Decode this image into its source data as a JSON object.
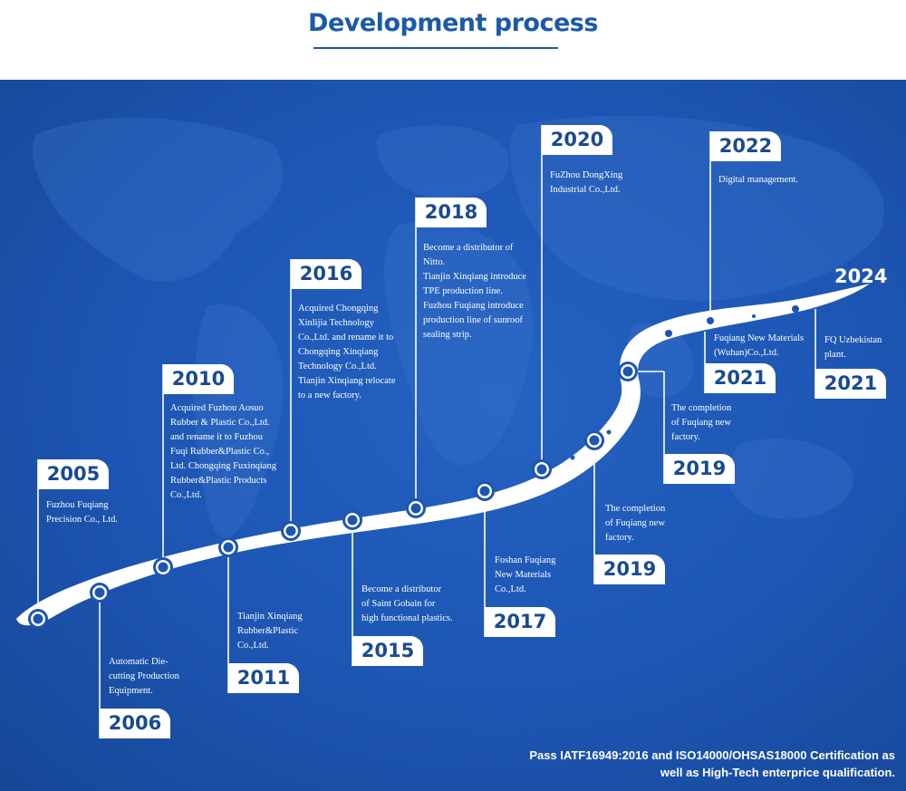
{
  "title": "Development process",
  "colors": {
    "accent": "#1a5aa8",
    "panel": "#1d55b2",
    "year_text": "#1a4a90"
  },
  "milestones": [
    {
      "year": "2005",
      "text": "Fuzhou Fuqiang\nPrecision Co., Ltd."
    },
    {
      "year": "2006",
      "text": "Automatic Die-\ncutting Production\nEquipment."
    },
    {
      "year": "2010",
      "text": "Acquired Fuzhou Aosuo\nRubber & Plastic Co.,Ltd.\nand rename it to Fuzhou\nFuqi Rubber&Plastic Co.,\nLtd. Chongqing Fuxinqiang\nRubber&Plastic Products\nCo.,Ltd."
    },
    {
      "year": "2011",
      "text": "Tianjin Xinqiang\nRubber&Plastic\nCo.,Ltd."
    },
    {
      "year": "2016",
      "text": "Acquired Chongqing\nXinlijia Technology\nCo.,Ltd. and rename it to\nChongqing Xinqiang\nTechnology Co.,Ltd.\nTianjin Xinqiang relocate\nto a new factory."
    },
    {
      "year": "2015",
      "text": "Become a distributor\nof Saint Gobain for\nhigh functional plastics."
    },
    {
      "year": "2018",
      "text": "Become a distributor of\nNitto.\nTianjin Xinqiang introduce\nTPE production line.\nFuzhou Fuqiang introduce\nproduction line of sunroof\n sealing strip."
    },
    {
      "year": "2017",
      "text": "Foshan Fuqiang\nNew Materials\nCo.,Ltd."
    },
    {
      "year": "2020",
      "text": "FuZhou DongXing\nIndustrial Co.,Ltd."
    },
    {
      "year": "2019",
      "text": "The completion\nof  Fuqiang new\nfactory."
    },
    {
      "year": "2019",
      "text": "The completion\nof  Fuqiang new\nfactory."
    },
    {
      "year": "2022",
      "text": "Digital management."
    },
    {
      "year": "2021",
      "text": "Fuqiang New Materials\n(Wuhan)Co.,Ltd."
    },
    {
      "year": "2021",
      "text": "FQ Uzbekistan\nplant."
    }
  ],
  "end_year": "2024",
  "footer": "Pass IATF16949:2016 and ISO14000/OHSAS18000 Certification as\nwell as High-Tech enterprice qualification."
}
